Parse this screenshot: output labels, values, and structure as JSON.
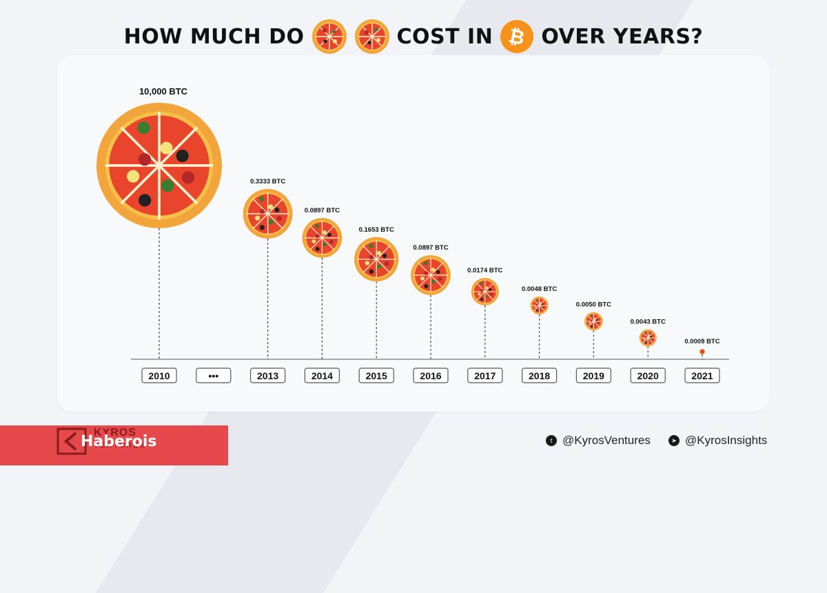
{
  "title": {
    "part1": "HOW MUCH DO",
    "part2": "COST IN",
    "part3": "OVER YEARS?",
    "icons": [
      "pizza-icon",
      "pizza-icon",
      "bitcoin-icon"
    ]
  },
  "chart_data": {
    "type": "scatter",
    "title": "HOW MUCH DO 🍕🍕 COST IN ₿ OVER YEARS?",
    "categories": [
      "2010",
      "...",
      "2013",
      "2014",
      "2015",
      "2016",
      "2017",
      "2018",
      "2019",
      "2020",
      "2021"
    ],
    "points": [
      {
        "year": "2010",
        "value": 10000,
        "label": "10,000 BTC"
      },
      {
        "year": "2013",
        "value": 0.3333,
        "label": "0.3333 BTC"
      },
      {
        "year": "2014",
        "value": 0.0897,
        "label": "0.0897 BTC"
      },
      {
        "year": "2015",
        "value": 0.1653,
        "label": "0.1653 BTC"
      },
      {
        "year": "2016",
        "value": 0.0897,
        "label": "0.0897 BTC"
      },
      {
        "year": "2017",
        "value": 0.0174,
        "label": "0.0174 BTC"
      },
      {
        "year": "2018",
        "value": 0.0048,
        "label": "0.0048 BTC"
      },
      {
        "year": "2019",
        "value": 0.005,
        "label": "0.0050 BTC"
      },
      {
        "year": "2020",
        "value": 0.0043,
        "label": "0.0043 BTC"
      },
      {
        "year": "2021",
        "value": 0.0009,
        "label": "0.0009 BTC"
      }
    ],
    "marker": "pizza",
    "grid": false
  },
  "colors": {
    "background": "#f3f4f7",
    "card": "#f8f9fb",
    "crust": "#f2a53a",
    "sauce": "#e8452c",
    "bitcoin": "#f7931a",
    "footer_red": "#e6494c"
  },
  "footer": {
    "brand": "KYROS",
    "brand_sub": "VENTURES",
    "watermark": "Haberois",
    "twitter": "@KyrosVentures",
    "telegram": "@KyrosInsights",
    "icons": [
      "twitter-icon",
      "telegram-icon"
    ]
  }
}
